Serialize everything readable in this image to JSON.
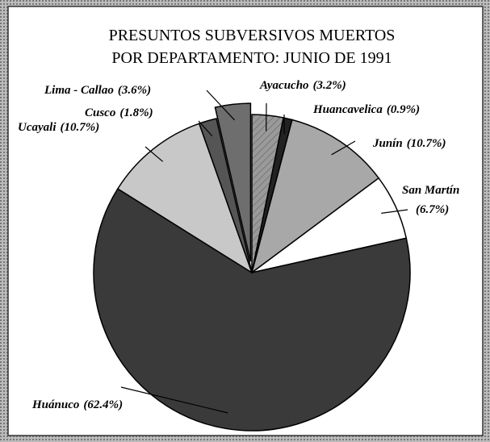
{
  "chart_data": {
    "type": "pie",
    "title": [
      "PRESUNTOS  SUBVERSIVOS MUERTOS",
      "POR DEPARTAMENTO: JUNIO DE 1991"
    ],
    "categories": [
      "Ayacucho",
      "Huancavelica",
      "Junín",
      "San Martín",
      "Huánuco",
      "Ucayali",
      "Cusco",
      "Lima - Callao"
    ],
    "values": [
      3.2,
      0.9,
      10.7,
      6.7,
      62.4,
      10.7,
      1.8,
      3.6
    ],
    "value_labels": [
      "(3.2%)",
      "(0.9%)",
      "(10.7%)",
      "(6.7%)",
      "(62.4%)",
      "(10.7%)",
      "(1.8%)",
      "(3.6%)"
    ],
    "colors": [
      "#9a9a9a",
      "#222222",
      "#a8a8a8",
      "#ffffff",
      "#3a3a3a",
      "#c8c8c8",
      "#555555",
      "#6e6e6e"
    ],
    "exploded": [
      "Lima - Callao"
    ]
  }
}
